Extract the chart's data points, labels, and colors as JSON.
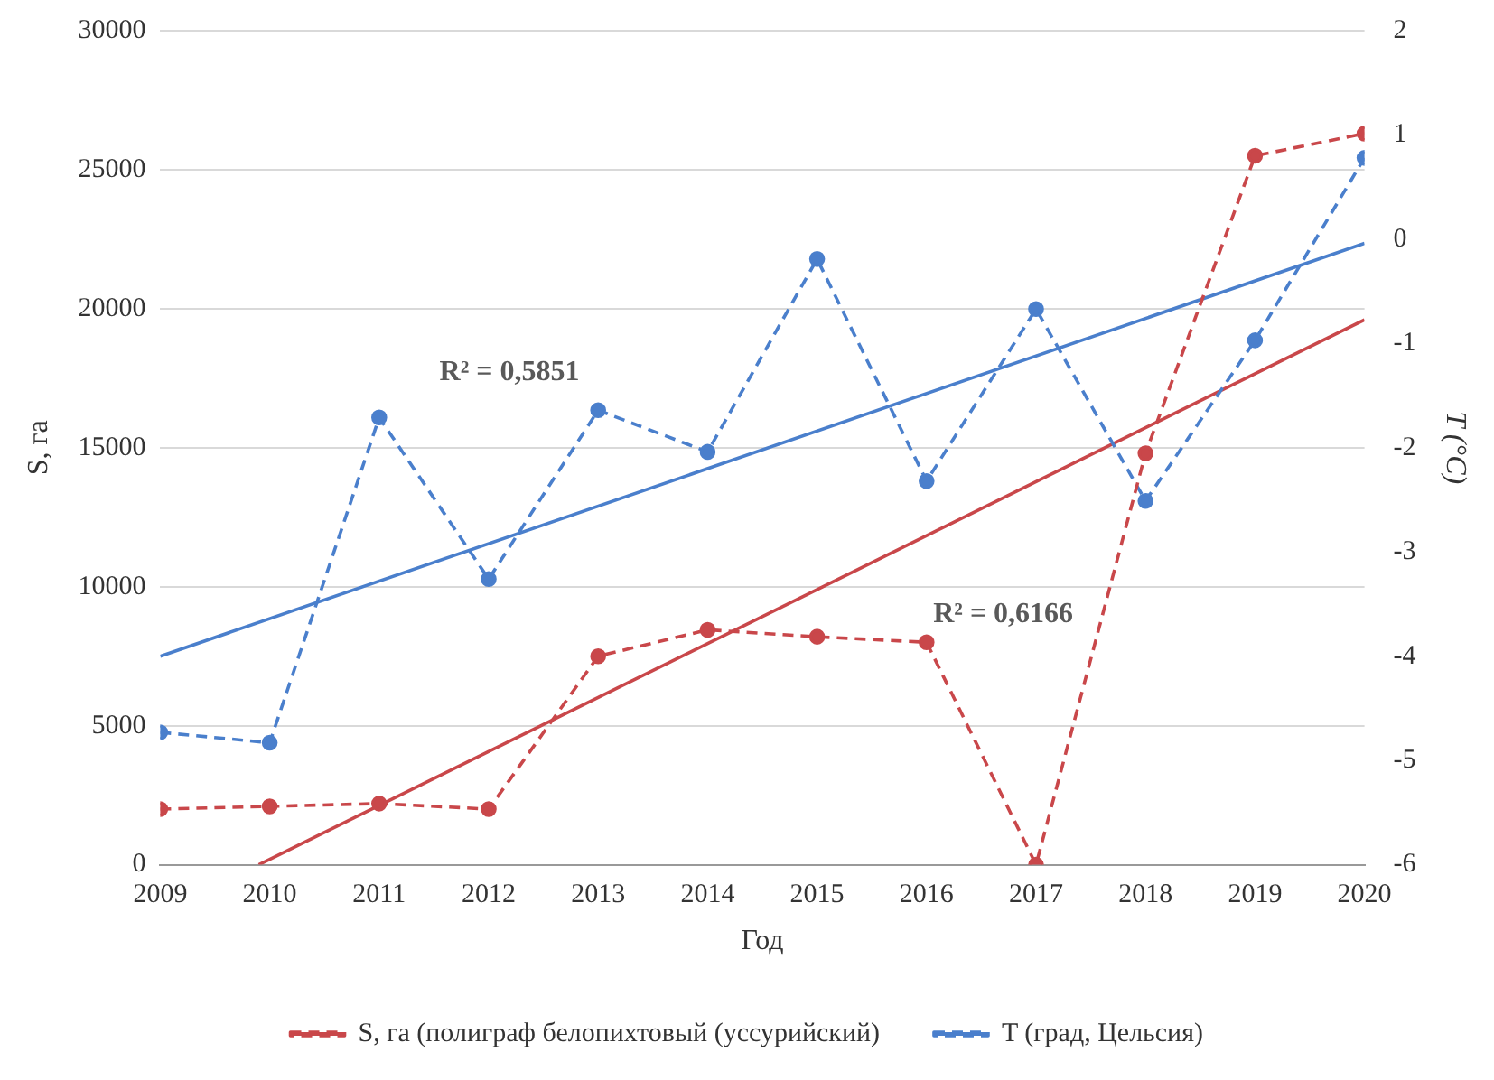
{
  "chart_data": {
    "type": "line",
    "xlabel": "Год",
    "ylabel": "S, га",
    "y2label": "T (°C)",
    "x": [
      2009,
      2010,
      2011,
      2012,
      2013,
      2014,
      2015,
      2016,
      2017,
      2018,
      2019,
      2020
    ],
    "xlim": [
      2009,
      2020
    ],
    "xticks": [
      2009,
      2010,
      2011,
      2012,
      2013,
      2014,
      2015,
      2016,
      2017,
      2018,
      2019,
      2020
    ],
    "ylim": [
      0,
      30000
    ],
    "yticks": [
      0,
      5000,
      10000,
      15000,
      20000,
      25000,
      30000
    ],
    "y2lim": [
      -6,
      2
    ],
    "y2ticks": [
      -6,
      -5,
      -4,
      -3,
      -2,
      -1,
      0,
      1,
      2
    ],
    "grid": "y",
    "legend": "bottom",
    "marker": "circle",
    "series": [
      {
        "name": "S, га (полиграф белопихтовый (уссурийский)",
        "color": "#c9474a",
        "line_style": "dashed",
        "values": [
          2000,
          2100,
          2200,
          2000,
          7500,
          8450,
          8200,
          8000,
          0,
          14800,
          25500,
          26300
        ]
      },
      {
        "name": "T (град, Цельсия)",
        "color": "#4a7fcc",
        "axis": "y2",
        "line_style": "dashed",
        "values": [
          -4.73,
          -4.83,
          -1.71,
          -3.26,
          -1.64,
          -2.04,
          -0.19,
          -2.32,
          -0.67,
          -2.51,
          -0.97,
          0.78
        ]
      },
      {
        "color": "#c9474a",
        "line_style": "solid",
        "marker": "none",
        "x": [
          2009.9,
          2020
        ],
        "values": [
          0,
          19600
        ]
      },
      {
        "color": "#4a7fcc",
        "axis": "y2",
        "line_style": "solid",
        "marker": "none",
        "x": [
          2009,
          2020
        ],
        "values": [
          -4.0,
          -0.04
        ]
      }
    ],
    "annotations": [
      "R² = 0,5851",
      "R² = 0,6166"
    ]
  }
}
